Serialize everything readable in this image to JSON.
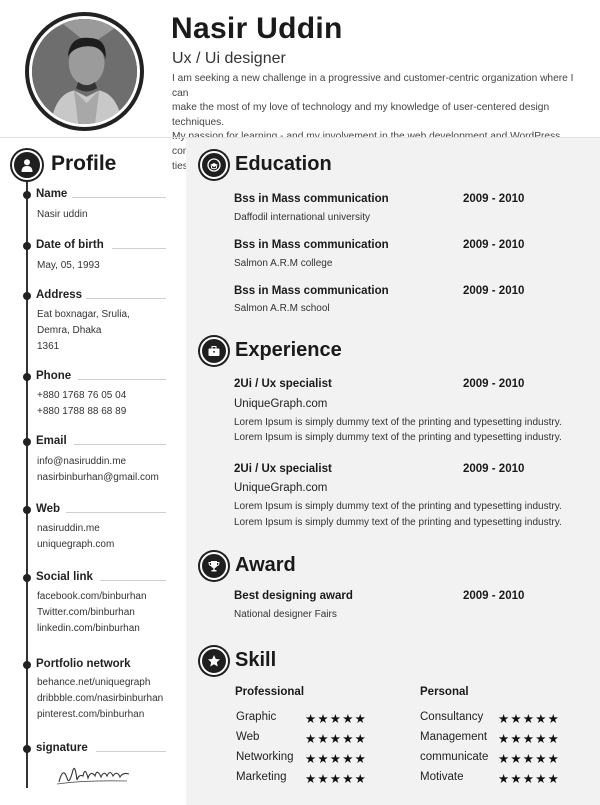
{
  "header": {
    "name": "Nasir Uddin",
    "role": "Ux / Ui designer",
    "summary_lines": [
      "I am seeking a new challenge in a progressive and customer-centric organization where I can",
      "make the most of my love of technology and my knowledge of user-centered design techniques.",
      "My passion for learning - and my involvement in the web development and WordPress communi-",
      "ties -"
    ]
  },
  "profile": {
    "heading": "Profile",
    "icon": "user-icon",
    "name": {
      "title": "Name",
      "lines": [
        "Nasir uddin"
      ]
    },
    "dob": {
      "title": "Date of birth",
      "lines": [
        "May, 05, 1993"
      ]
    },
    "address": {
      "title": "Address",
      "lines": [
        "Eat boxnagar, Srulia,",
        "Demra, Dhaka",
        "1361"
      ]
    },
    "phone": {
      "title": "Phone",
      "lines": [
        "+880 1768 76 05 04",
        "+880 1788 88 68 89"
      ]
    },
    "email": {
      "title": "Email",
      "lines": [
        "info@nasiruddin.me",
        "nasirbinburhan@gmail.com"
      ]
    },
    "web": {
      "title": "Web",
      "lines": [
        "nasiruddin.me",
        "uniquegraph.com"
      ]
    },
    "social": {
      "title": "Social link",
      "lines": [
        "facebook.com/binburhan",
        "Twitter.com/binburhan",
        "linkedin.com/binburhan"
      ]
    },
    "portfolio": {
      "title": "Portfolio network",
      "lines": [
        "behance.net/uniquegraph",
        "dribbble.com/nasirbinburhan",
        "pinterest.com/binburhan"
      ]
    },
    "signature": {
      "title": "signature"
    }
  },
  "education": {
    "heading": "Education",
    "icon": "graduation-icon",
    "items": [
      {
        "degree": "Bss in Mass communication",
        "years": "2009 - 2010",
        "institution": "Daffodil international university"
      },
      {
        "degree": "Bss in Mass communication",
        "years": "2009 - 2010",
        "institution": "Salmon A.R.M college"
      },
      {
        "degree": "Bss in Mass communication",
        "years": "2009 - 2010",
        "institution": "Salmon A.R.M  school"
      }
    ]
  },
  "experience": {
    "heading": "Experience",
    "icon": "briefcase-icon",
    "items": [
      {
        "title": "2Ui / Ux specialist",
        "years": "2009 - 2010",
        "company": "UniqueGraph.com",
        "lines": [
          "Lorem Ipsum is simply dummy text of the printing and typesetting industry.",
          "Lorem Ipsum is simply dummy text of the printing and typesetting industry."
        ]
      },
      {
        "title": "2Ui / Ux specialist",
        "years": "2009 - 2010",
        "company": "UniqueGraph.com",
        "lines": [
          "Lorem Ipsum is simply dummy text of the printing and typesetting industry.",
          "Lorem Ipsum is simply dummy text of the printing and typesetting industry."
        ]
      }
    ]
  },
  "award": {
    "heading": "Award",
    "icon": "trophy-icon",
    "items": [
      {
        "title": "Best designing award",
        "years": "2009 - 2010",
        "org": "National designer Fairs"
      }
    ]
  },
  "skill": {
    "heading": "Skill",
    "icon": "star-icon",
    "professional": {
      "heading": "Professional",
      "items": [
        {
          "name": "Graphic",
          "rating": 5
        },
        {
          "name": "Web",
          "rating": 5
        },
        {
          "name": "Networking",
          "rating": 5
        },
        {
          "name": "Marketing",
          "rating": 5
        }
      ]
    },
    "personal": {
      "heading": "Personal",
      "items": [
        {
          "name": "Consultancy",
          "rating": 5
        },
        {
          "name": "Management",
          "rating": 5
        },
        {
          "name": "communicate",
          "rating": 5
        },
        {
          "name": "Motivate",
          "rating": 5
        }
      ]
    }
  }
}
